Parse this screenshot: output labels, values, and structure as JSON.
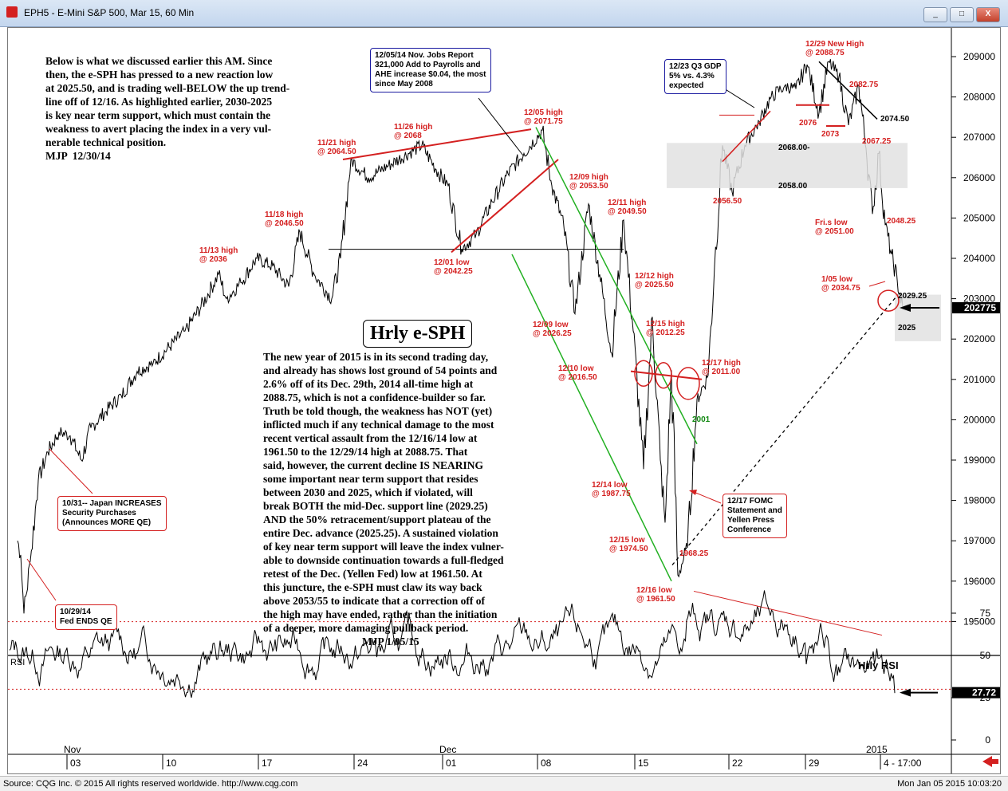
{
  "window": {
    "title": "EPH5 - E-Mini S&P 500, Mar 15, 60 Min",
    "min_btn": "_",
    "max_btn": "□",
    "close_btn": "X"
  },
  "status": {
    "copyright": "Source: CQG Inc. © 2015 All rights reserved worldwide. http://www.cqg.com",
    "timestamp": "Mon Jan 05 2015 10:03:20"
  },
  "colors": {
    "price": "#000000",
    "annotation": "#d42020",
    "channel": "#22b022",
    "box_border_red": "#d42020",
    "box_border_blue": "#1a1aa0"
  },
  "chart_data": {
    "type": "line",
    "title": "Hrly e-SPH",
    "price_axis": {
      "ticks": [
        209000,
        208000,
        207000,
        206000,
        205000,
        204000,
        203000,
        202000,
        201000,
        200000,
        199000,
        198000,
        197000,
        196000,
        195000
      ],
      "range": [
        194400,
        209800
      ],
      "last_price": "202775"
    },
    "x_axis": {
      "months": [
        "Nov",
        "Dec",
        "2015"
      ],
      "days": [
        "03",
        "10",
        "17",
        "24",
        "01",
        "08",
        "15",
        "22",
        "29",
        "4 - 17:00"
      ]
    },
    "price_keypoints": [
      {
        "t": 0,
        "y": 1970.0
      },
      {
        "t": 4,
        "y": 1966.5
      },
      {
        "t": 8,
        "y": 1952.0
      },
      {
        "t": 16,
        "y": 1965.0
      },
      {
        "t": 26,
        "y": 1985.0
      },
      {
        "t": 38,
        "y": 1992.0
      },
      {
        "t": 52,
        "y": 1997.0
      },
      {
        "t": 66,
        "y": 1996.0
      },
      {
        "t": 80,
        "y": 1990.0
      },
      {
        "t": 92,
        "y": 1998.0
      },
      {
        "t": 110,
        "y": 2002.0
      },
      {
        "t": 130,
        "y": 2006.0
      },
      {
        "t": 150,
        "y": 2012.0
      },
      {
        "t": 170,
        "y": 2014.0
      },
      {
        "t": 190,
        "y": 2018.0
      },
      {
        "t": 210,
        "y": 2022.0
      },
      {
        "t": 230,
        "y": 2028.0
      },
      {
        "t": 252,
        "y": 2036.0
      },
      {
        "t": 262,
        "y": 2030.0
      },
      {
        "t": 280,
        "y": 2034.0
      },
      {
        "t": 300,
        "y": 2040.0
      },
      {
        "t": 320,
        "y": 2038.0
      },
      {
        "t": 340,
        "y": 2033.0
      },
      {
        "t": 354,
        "y": 2046.5
      },
      {
        "t": 372,
        "y": 2036.0
      },
      {
        "t": 394,
        "y": 2030.0
      },
      {
        "t": 405,
        "y": 2040.0
      },
      {
        "t": 418,
        "y": 2064.5
      },
      {
        "t": 440,
        "y": 2060.0
      },
      {
        "t": 465,
        "y": 2063.0
      },
      {
        "t": 490,
        "y": 2066.0
      },
      {
        "t": 507,
        "y": 2068.0
      },
      {
        "t": 525,
        "y": 2062.0
      },
      {
        "t": 540,
        "y": 2058.0
      },
      {
        "t": 557,
        "y": 2042.25
      },
      {
        "t": 575,
        "y": 2046.0
      },
      {
        "t": 595,
        "y": 2054.0
      },
      {
        "t": 615,
        "y": 2061.0
      },
      {
        "t": 635,
        "y": 2066.0
      },
      {
        "t": 658,
        "y": 2071.75
      },
      {
        "t": 670,
        "y": 2058.0
      },
      {
        "t": 685,
        "y": 2048.0
      },
      {
        "t": 699,
        "y": 2026.25
      },
      {
        "t": 716,
        "y": 2053.5
      },
      {
        "t": 730,
        "y": 2036.0
      },
      {
        "t": 745,
        "y": 2016.5
      },
      {
        "t": 760,
        "y": 2049.5
      },
      {
        "t": 772,
        "y": 2022.0
      },
      {
        "t": 785,
        "y": 1987.75
      },
      {
        "t": 796,
        "y": 2025.5
      },
      {
        "t": 806,
        "y": 1990.0
      },
      {
        "t": 812,
        "y": 1974.5
      },
      {
        "t": 820,
        "y": 2012.25
      },
      {
        "t": 828,
        "y": 1961.5
      },
      {
        "t": 840,
        "y": 1968.25
      },
      {
        "t": 852,
        "y": 2005.0
      },
      {
        "t": 866,
        "y": 2011.0
      },
      {
        "t": 874,
        "y": 2038.0
      },
      {
        "t": 884,
        "y": 2068.0
      },
      {
        "t": 896,
        "y": 2056.5
      },
      {
        "t": 912,
        "y": 2068.0
      },
      {
        "t": 930,
        "y": 2074.0
      },
      {
        "t": 945,
        "y": 2080.0
      },
      {
        "t": 962,
        "y": 2082.75
      },
      {
        "t": 976,
        "y": 2082.0
      },
      {
        "t": 990,
        "y": 2088.0
      },
      {
        "t": 1005,
        "y": 2076.0
      },
      {
        "t": 1017,
        "y": 2088.75
      },
      {
        "t": 1030,
        "y": 2085.0
      },
      {
        "t": 1042,
        "y": 2073.0
      },
      {
        "t": 1055,
        "y": 2082.75
      },
      {
        "t": 1064,
        "y": 2067.25
      },
      {
        "t": 1072,
        "y": 2051.0
      },
      {
        "t": 1080,
        "y": 2066.0
      },
      {
        "t": 1088,
        "y": 2048.25
      },
      {
        "t": 1096,
        "y": 2041.0
      },
      {
        "t": 1103,
        "y": 2034.75
      },
      {
        "t": 1110,
        "y": 2027.75
      }
    ],
    "rsi": {
      "title": "Hrly RSI",
      "label": "RSI",
      "ticks": [
        75,
        50,
        25,
        0
      ],
      "last_value": "27.72"
    }
  },
  "annotations": {
    "note_top": "Below is what we discussed earlier this AM. Since\nthen, the e-SPH has pressed to a new reaction low\nat 2025.50, and is trading well-BELOW the up trend-\nline off of 12/16. As highlighted earlier, 2030-2025\nis key near term support, which must contain the\nweakness to avert placing the index in a very vul-\nnerable technical position.\nMJP  12/30/14",
    "note_main": "The new year of 2015 is in its second trading day,\nand already has shows lost ground of 54 points and\n2.6% off of its Dec. 29th, 2014 all-time high at\n2088.75, which is not a confidence-builder so far.\nTruth be told though, the weakness has NOT (yet)\ninflicted much if any technical damage to the most\nrecent vertical assault from the 12/16/14 low at\n1961.50 to the 12/29/14 high at 2088.75. That\nsaid, however, the current decline IS NEARING\nsome important near term support that resides\nbetween 2030 and 2025, which if violated, will\nbreak BOTH the mid-Dec. support line (2029.25)\nAND the 50% retracement/support plateau of the\nentire Dec. advance (2025.25). A sustained violation\nof key near term support will leave the index vulner-\nable to downside continuation towards a full-fledged\nretest of the Dec. (Yellen Fed) low at 1961.50. At\nthis juncture, the e-SPH must claw its way back\nabove 2053/55 to indicate that a correction off of\nthe high may have ended, rather than the initiation\nof a deeper, more damaging pullback period.",
    "note_main_sig": "MJP 1/05/15",
    "box_jobs": "12/05/14 Nov. Jobs Report\n321,000 Add to Payrolls and\nAHE increase $0.04, the most\nsince May 2008",
    "box_gdp": "12/23 Q3 GDP\n5% vs. 4.3%\nexpected",
    "box_japan": "10/31-- Japan INCREASES\nSecurity Purchases\n(Announces MORE QE)",
    "box_fed": "10/29/14\nFed ENDS QE",
    "box_fomc": "12/17 FOMC\nStatement and\nYellen Press\nConference",
    "labels": [
      {
        "id": "l-1113",
        "text": "11/13 high\n@ 2036"
      },
      {
        "id": "l-1118",
        "text": "11/18 high\n@ 2046.50"
      },
      {
        "id": "l-1121",
        "text": "11/21 high\n@ 2064.50"
      },
      {
        "id": "l-1126",
        "text": "11/26 high\n@ 2068"
      },
      {
        "id": "l-1201",
        "text": "12/01 low\n@ 2042.25"
      },
      {
        "id": "l-1205",
        "text": "12/05 high\n@ 2071.75"
      },
      {
        "id": "l-1209h",
        "text": "12/09 high\n@ 2053.50"
      },
      {
        "id": "l-1209l",
        "text": "12/09 low\n@ 2026.25"
      },
      {
        "id": "l-1210",
        "text": "12/10 low\n@ 2016.50"
      },
      {
        "id": "l-1211",
        "text": "12/11 high\n@ 2049.50"
      },
      {
        "id": "l-1212",
        "text": "12/12 high\n@ 2025.50"
      },
      {
        "id": "l-1214",
        "text": "12/14 low\n@ 1987.75"
      },
      {
        "id": "l-1215l",
        "text": "12/15 low\n@ 1974.50"
      },
      {
        "id": "l-1215h",
        "text": "12/15 high\n@ 2012.25"
      },
      {
        "id": "l-1216",
        "text": "12/16 low\n@ 1961.50"
      },
      {
        "id": "l-1217",
        "text": "12/17 high\n@ 2011.00"
      },
      {
        "id": "l-196825",
        "text": "1968.25"
      },
      {
        "id": "l-2001",
        "text": "2001"
      },
      {
        "id": "l-205650",
        "text": "2056.50"
      },
      {
        "id": "l-1229",
        "text": "12/29 New High\n@ 2088.75"
      },
      {
        "id": "l-208275",
        "text": "2082.75"
      },
      {
        "id": "l-2076",
        "text": "2076"
      },
      {
        "id": "l-2073",
        "text": "2073"
      },
      {
        "id": "l-207450",
        "text": "2074.50"
      },
      {
        "id": "l-206725",
        "text": "2067.25"
      },
      {
        "id": "l-206800",
        "text": "2068.00-"
      },
      {
        "id": "l-205800",
        "text": "2058.00"
      },
      {
        "id": "l-fri",
        "text": "Fri.s  low\n@ 2051.00"
      },
      {
        "id": "l-204825",
        "text": "2048.25"
      },
      {
        "id": "l-0105",
        "text": "1/05 low\n@ 2034.75"
      },
      {
        "id": "l-202925",
        "text": "2029.25"
      },
      {
        "id": "l-2025",
        "text": "2025"
      }
    ]
  }
}
